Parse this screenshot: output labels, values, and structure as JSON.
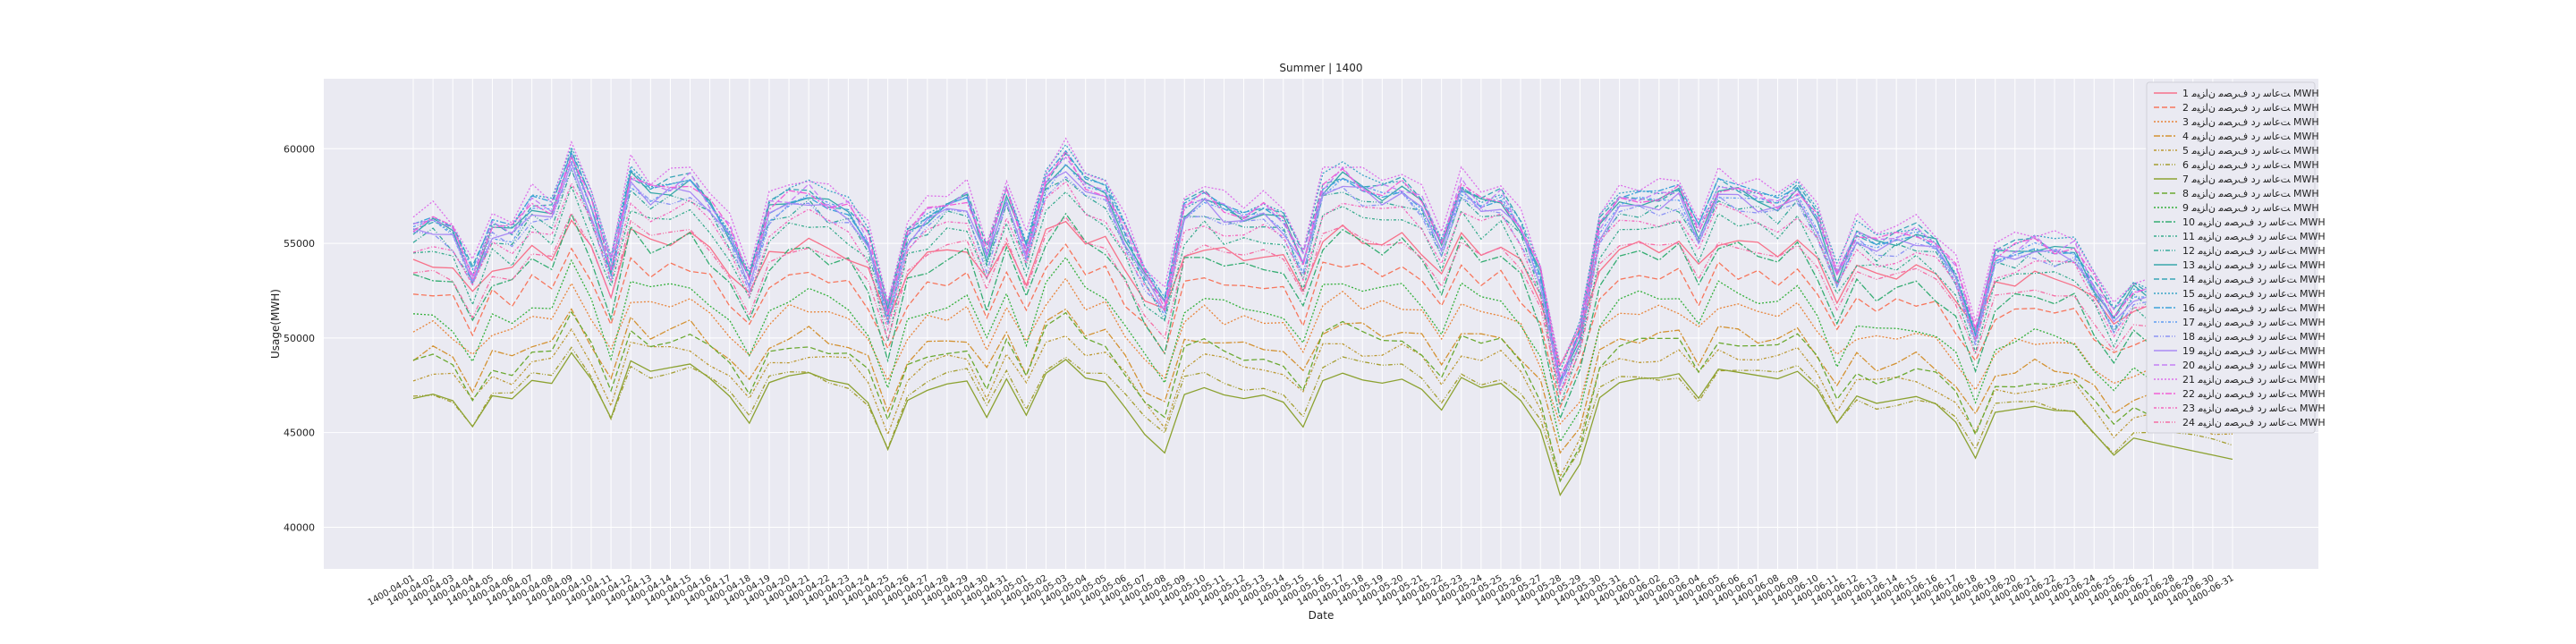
{
  "chart_data": {
    "type": "line",
    "title": "Summer | 1400",
    "xlabel": "Date",
    "ylabel": "Usage(MWH)",
    "ylim": [
      37800,
      63700
    ],
    "yticks": [
      40000,
      45000,
      50000,
      55000,
      60000
    ],
    "grid": true,
    "legend_position": "top-right",
    "x": [
      "1400-04-01",
      "1400-04-02",
      "1400-04-03",
      "1400-04-04",
      "1400-04-05",
      "1400-04-06",
      "1400-04-07",
      "1400-04-08",
      "1400-04-09",
      "1400-04-10",
      "1400-04-11",
      "1400-04-12",
      "1400-04-13",
      "1400-04-14",
      "1400-04-15",
      "1400-04-16",
      "1400-04-17",
      "1400-04-18",
      "1400-04-19",
      "1400-04-20",
      "1400-04-21",
      "1400-04-22",
      "1400-04-23",
      "1400-04-24",
      "1400-04-25",
      "1400-04-26",
      "1400-04-27",
      "1400-04-28",
      "1400-04-29",
      "1400-04-30",
      "1400-04-31",
      "1400-05-01",
      "1400-05-02",
      "1400-05-03",
      "1400-05-04",
      "1400-05-05",
      "1400-05-06",
      "1400-05-07",
      "1400-05-08",
      "1400-05-09",
      "1400-05-10",
      "1400-05-11",
      "1400-05-12",
      "1400-05-13",
      "1400-05-14",
      "1400-05-15",
      "1400-05-16",
      "1400-05-17",
      "1400-05-18",
      "1400-05-19",
      "1400-05-20",
      "1400-05-21",
      "1400-05-22",
      "1400-05-23",
      "1400-05-24",
      "1400-05-25",
      "1400-05-26",
      "1400-05-27",
      "1400-05-28",
      "1400-05-29",
      "1400-05-30",
      "1400-05-31",
      "1400-06-01",
      "1400-06-02",
      "1400-06-03",
      "1400-06-04",
      "1400-06-05",
      "1400-06-06",
      "1400-06-07",
      "1400-06-08",
      "1400-06-09",
      "1400-06-10",
      "1400-06-11",
      "1400-06-12",
      "1400-06-13",
      "1400-06-14",
      "1400-06-15",
      "1400-06-16",
      "1400-06-17",
      "1400-06-18",
      "1400-06-19",
      "1400-06-20",
      "1400-06-21",
      "1400-06-22",
      "1400-06-23",
      "1400-06-24",
      "1400-06-25",
      "1400-06-26",
      "1400-06-27",
      "1400-06-28",
      "1400-06-29",
      "1400-06-30",
      "1400-06-31"
    ],
    "profile": [
      0.72,
      0.74,
      0.7,
      0.55,
      0.72,
      0.7,
      0.8,
      0.78,
      0.95,
      0.8,
      0.58,
      0.9,
      0.84,
      0.86,
      0.88,
      0.8,
      0.7,
      0.55,
      0.78,
      0.82,
      0.84,
      0.8,
      0.78,
      0.68,
      0.42,
      0.7,
      0.76,
      0.8,
      0.82,
      0.62,
      0.84,
      0.64,
      0.88,
      0.96,
      0.86,
      0.84,
      0.7,
      0.55,
      0.45,
      0.78,
      0.82,
      0.78,
      0.76,
      0.78,
      0.74,
      0.6,
      0.86,
      0.9,
      0.86,
      0.84,
      0.86,
      0.8,
      0.68,
      0.86,
      0.8,
      0.82,
      0.72,
      0.55,
      0.18,
      0.35,
      0.72,
      0.8,
      0.82,
      0.82,
      0.84,
      0.7,
      0.86,
      0.84,
      0.82,
      0.8,
      0.84,
      0.74,
      0.55,
      0.7,
      0.66,
      0.68,
      0.7,
      0.66,
      0.56,
      0.36,
      0.62,
      0.64,
      0.66,
      0.64,
      0.64,
      0.52,
      0.4,
      0.5,
      0.48,
      0.46,
      0.44,
      0.42,
      0.4
    ],
    "series": [
      {
        "name": "ﺖﻋﺎﺳ ﺭﺩ ﻑﺮﺼﻣ ﻥﺍﺰﯿﻣ 1 MWH",
        "base": 46800,
        "amp": 9800,
        "color": "#f77189"
      },
      {
        "name": "ﺖﻋﺎﺳ ﺭﺩ ﻑﺮﺼﻣ ﻥﺍﺰﯿﻣ 2 MWH",
        "base": 44800,
        "amp": 10300,
        "color": "#f7765c"
      },
      {
        "name": "ﺖﻋﺎﺳ ﺭﺩ ﻑﺮﺼﻣ ﻥﺍﺰﯿﻣ 3 MWH",
        "base": 43400,
        "amp": 9800,
        "color": "#e8853a"
      },
      {
        "name": "ﺖﻋﺎﺳ ﺭﺩ ﻑﺮﺼﻣ ﻥﺍﺰﯿﻣ 4 MWH",
        "base": 42200,
        "amp": 9600,
        "color": "#d39232"
      },
      {
        "name": "ﺖﻋﺎﺳ ﺭﺩ ﻑﺮﺼﻣ ﻥﺍﺰﯿﻣ 5 MWH",
        "base": 41300,
        "amp": 9400,
        "color": "#bb9831"
      },
      {
        "name": "ﺖﻋﺎﺳ ﺭﺩ ﻑﺮﺼﻣ ﻥﺍﺰﯿﻣ 6 MWH",
        "base": 40500,
        "amp": 9200,
        "color": "#a49e31"
      },
      {
        "name": "ﺖﻋﺎﺳ ﺭﺩ ﻑﺮﺼﻣ ﻥﺍﺰﯿﻣ 7 MWH",
        "base": 40000,
        "amp": 9400,
        "color": "#8ca231"
      },
      {
        "name": "ﺖﻋﺎﺳ ﺭﺩ ﻑﺮﺼﻣ ﻥﺍﺰﯿﻣ 8 MWH",
        "base": 40800,
        "amp": 10800,
        "color": "#6ba931"
      },
      {
        "name": "ﺖﻋﺎﺳ ﺭﺩ ﻑﺮﺼﻣ ﻥﺍﺰﯿﻣ 9 MWH",
        "base": 42000,
        "amp": 12400,
        "color": "#33b03a"
      },
      {
        "name": "ﺖﻋﺎﺳ ﺭﺩ ﻑﺮﺼﻣ ﻥﺍﺰﯿﻣ 10 MWH",
        "base": 43300,
        "amp": 13600,
        "color": "#35ad72"
      },
      {
        "name": "ﺖﻋﺎﺳ ﺭﺩ ﻑﺮﺼﻣ ﻥﺍﺰﯿﻣ 11 MWH",
        "base": 44200,
        "amp": 14200,
        "color": "#36ab8b"
      },
      {
        "name": "ﺖﻋﺎﺳ ﺭﺩ ﻑﺮﺼﻣ ﻥﺍﺰﯿﻣ 12 MWH",
        "base": 44700,
        "amp": 14600,
        "color": "#37a99b"
      },
      {
        "name": "ﺖﻋﺎﺳ ﺭﺩ ﻑﺮﺼﻣ ﻥﺍﺰﯿﻣ 13 MWH",
        "base": 45000,
        "amp": 15000,
        "color": "#38a8a9"
      },
      {
        "name": "ﺖﻋﺎﺳ ﺭﺩ ﻑﺮﺼﻣ ﻥﺍﺰﯿﻣ 14 MWH",
        "base": 45100,
        "amp": 15200,
        "color": "#39a6b7"
      },
      {
        "name": "ﺖﻋﺎﺳ ﺭﺩ ﻑﺮﺼﻣ ﻥﺍﺰﯿﻣ 15 MWH",
        "base": 45200,
        "amp": 15300,
        "color": "#3aa4c6"
      },
      {
        "name": "ﺖﻋﺎﺳ ﺭﺩ ﻑﺮﺼﻣ ﻥﺍﺰﯿﻣ 16 MWH",
        "base": 45000,
        "amp": 15200,
        "color": "#3ca1da"
      },
      {
        "name": "ﺖﻋﺎﺳ ﺭﺩ ﻑﺮﺼﻣ ﻥﺍﺰﯿﻣ 17 MWH",
        "base": 44800,
        "amp": 15000,
        "color": "#5c9bf2"
      },
      {
        "name": "ﺖﻋﺎﺳ ﺭﺩ ﻑﺮﺼﻣ ﻥﺍﺰﯿﻣ 18 MWH",
        "base": 44600,
        "amp": 14800,
        "color": "#8b93f4"
      },
      {
        "name": "ﺖﻋﺎﺳ ﺭﺩ ﻑﺮﺼﻣ ﻥﺍﺰﯿﻣ 19 MWH",
        "base": 44800,
        "amp": 14900,
        "color": "#a98af4"
      },
      {
        "name": "ﺖﻋﺎﺳ ﺭﺩ ﻑﺮﺼﻣ ﻥﺍﺰﯿﻣ 20 MWH",
        "base": 45200,
        "amp": 15000,
        "color": "#c47ff4"
      },
      {
        "name": "ﺖﻋﺎﺳ ﺭﺩ ﻑﺮﺼﻣ ﻥﺍﺰﯿﻣ 21 MWH",
        "base": 45500,
        "amp": 15400,
        "color": "#dd70ea"
      },
      {
        "name": "ﺖﻋﺎﺳ ﺭﺩ ﻑﺮﺼﻣ ﻥﺍﺰﯿﻣ 22 MWH",
        "base": 45300,
        "amp": 14800,
        "color": "#f15fd6"
      },
      {
        "name": "ﺖﻋﺎﺳ ﺭﺩ ﻑﺮﺼﻣ ﻥﺍﺰﯿﻣ 23 MWH",
        "base": 44900,
        "amp": 13800,
        "color": "#f466bc"
      },
      {
        "name": "ﺖﻋﺎﺳ ﺭﺩ ﻑﺮﺼﻣ ﻥﺍﺰﯿﻣ 24 MWH",
        "base": 44500,
        "amp": 12600,
        "color": "#f56ea5"
      }
    ]
  }
}
